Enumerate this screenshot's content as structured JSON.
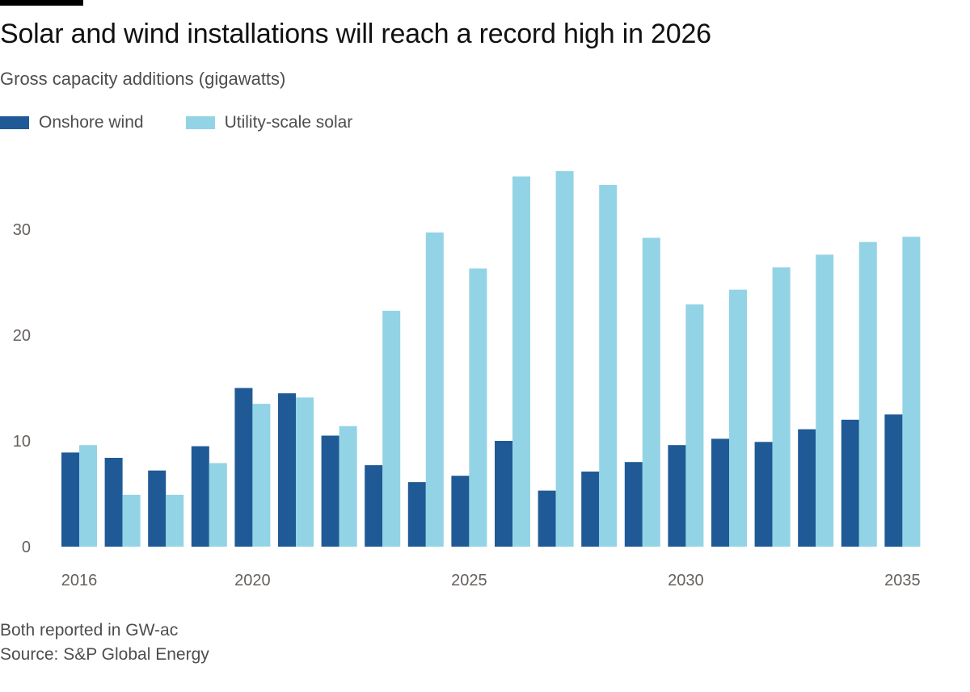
{
  "header": {
    "title": "Solar and wind installations will reach a record high in 2026",
    "subtitle": "Gross capacity additions (gigawatts)"
  },
  "legend": {
    "items": [
      {
        "label": "Onshore wind",
        "color": "#1f5a96"
      },
      {
        "label": "Utility-scale solar",
        "color": "#93d3e6"
      }
    ]
  },
  "chart_data": {
    "type": "bar",
    "title": "Solar and wind installations will reach a record high in 2026",
    "subtitle": "Gross capacity additions (gigawatts)",
    "categories": [
      "2016",
      "2017",
      "2018",
      "2019",
      "2020",
      "2021",
      "2022",
      "2023",
      "2024",
      "2025",
      "2026",
      "2027",
      "2028",
      "2029",
      "2030",
      "2031",
      "2032",
      "2033",
      "2034",
      "2035"
    ],
    "x_tick_labels": [
      "2016",
      "2020",
      "2025",
      "2030",
      "2035"
    ],
    "y_ticks": [
      0,
      10,
      20,
      30
    ],
    "ylim": [
      0,
      36
    ],
    "grid": false,
    "legend_position": "top-left",
    "series": [
      {
        "name": "Onshore wind",
        "color": "#1f5a96",
        "values": [
          8.9,
          8.4,
          7.2,
          9.5,
          15.0,
          14.5,
          10.5,
          7.7,
          6.1,
          6.7,
          10.0,
          5.3,
          7.1,
          8.0,
          9.6,
          10.2,
          9.9,
          11.1,
          12.0,
          12.5
        ]
      },
      {
        "name": "Utility-scale solar",
        "color": "#93d3e6",
        "values": [
          9.6,
          4.9,
          4.9,
          7.9,
          13.5,
          14.1,
          11.4,
          22.3,
          29.7,
          26.3,
          35.0,
          35.5,
          34.2,
          29.2,
          22.9,
          24.3,
          26.4,
          27.6,
          28.8,
          29.3
        ]
      }
    ]
  },
  "footer": {
    "note": "Both reported in GW-ac",
    "source": "Source: S&P Global Energy"
  }
}
